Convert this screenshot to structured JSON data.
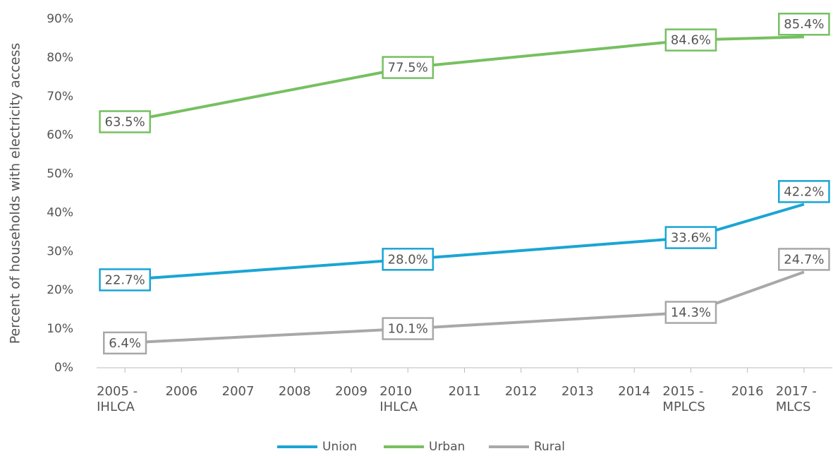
{
  "chart_data": {
    "type": "line",
    "y_label": "Percent of households with electricity access",
    "xlim": [
      2004.5,
      2017.5
    ],
    "xticks": [
      {
        "value": 2005,
        "label": "2005 - IHLCA"
      },
      2006,
      2007,
      2008,
      2009,
      {
        "value": 2010,
        "label": "2010 IHLCA"
      },
      2011,
      2012,
      2013,
      2014,
      {
        "value": 2015,
        "label": "2015 - MPLCS"
      },
      2016,
      {
        "value": 2017,
        "label": "2017 - MLCS"
      }
    ],
    "ylim": [
      0,
      90
    ],
    "yticks": [
      {
        "value": 0,
        "label": "0%"
      },
      {
        "value": 10,
        "label": "10%"
      },
      {
        "value": 20,
        "label": "20%"
      },
      {
        "value": 30,
        "label": "30%"
      },
      {
        "value": 40,
        "label": "40%"
      },
      {
        "value": 50,
        "label": "50%"
      },
      {
        "value": 60,
        "label": "60%"
      },
      {
        "value": 70,
        "label": "70%"
      },
      {
        "value": 80,
        "label": "80%"
      },
      {
        "value": 90,
        "label": "90%"
      }
    ],
    "grid": false,
    "legend": "bottom",
    "x": [
      2005,
      2010,
      2015,
      2017
    ],
    "series": [
      {
        "name": "Union",
        "color": "#1aa5d4",
        "values": [
          22.7,
          28.0,
          33.6,
          42.2
        ],
        "value_labels": [
          "22.7%",
          "28.0%",
          "33.6%",
          "42.2%"
        ]
      },
      {
        "name": "Urban",
        "color": "#76c061",
        "values": [
          63.5,
          77.5,
          84.6,
          85.4
        ],
        "value_labels": [
          "63.5%",
          "77.5%",
          "84.6%",
          "85.4%"
        ]
      },
      {
        "name": "Rural",
        "color": "#a8a8a8",
        "values": [
          6.4,
          10.1,
          14.3,
          24.7
        ],
        "value_labels": [
          "6.4%",
          "10.1%",
          "14.3%",
          "24.7%"
        ]
      }
    ]
  }
}
